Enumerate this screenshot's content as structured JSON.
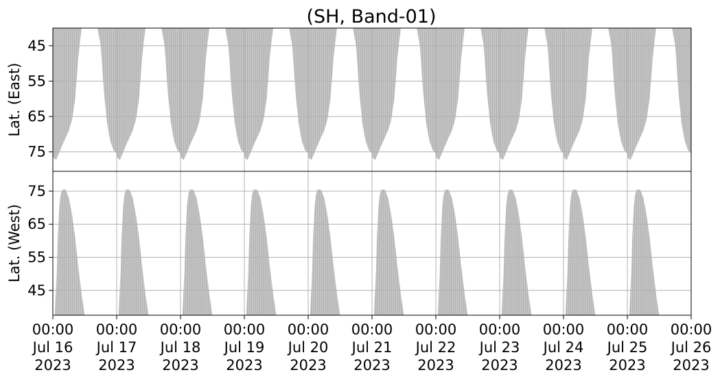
{
  "chart_data": {
    "type": "area",
    "title": "(SH, Band-01)",
    "colors": {
      "coverage": "#c4c4c4",
      "coverage_stripe": "#b2b2b2",
      "grid": "#b0b0b0",
      "axis": "#000000"
    },
    "grid": true,
    "x": {
      "type": "date",
      "range": [
        "2023-07-16 00:00",
        "2023-07-26 00:00"
      ],
      "ticks": [
        {
          "time": "00:00",
          "date": "Jul 16",
          "year": "2023"
        },
        {
          "time": "00:00",
          "date": "Jul 17",
          "year": "2023"
        },
        {
          "time": "00:00",
          "date": "Jul 18",
          "year": "2023"
        },
        {
          "time": "00:00",
          "date": "Jul 19",
          "year": "2023"
        },
        {
          "time": "00:00",
          "date": "Jul 20",
          "year": "2023"
        },
        {
          "time": "00:00",
          "date": "Jul 21",
          "year": "2023"
        },
        {
          "time": "00:00",
          "date": "Jul 22",
          "year": "2023"
        },
        {
          "time": "00:00",
          "date": "Jul 23",
          "year": "2023"
        },
        {
          "time": "00:00",
          "date": "Jul 24",
          "year": "2023"
        },
        {
          "time": "00:00",
          "date": "Jul 25",
          "year": "2023"
        },
        {
          "time": "00:00",
          "date": "Jul 26",
          "year": "2023"
        }
      ]
    },
    "panels": [
      {
        "id": "east",
        "ylabel": "Lat. (East)",
        "ylim": [
          40,
          80.5
        ],
        "inverted": true,
        "yticks": [
          45,
          55,
          65,
          75
        ],
        "coverage": "above_curve",
        "curve": {
          "x_day_offset": [
            0.0,
            0.05,
            0.1,
            0.15,
            0.2,
            0.25,
            0.3,
            0.35,
            0.4,
            0.45,
            0.5,
            0.52,
            0.55,
            0.6,
            0.65,
            0.7,
            0.75,
            0.8,
            0.85,
            0.9,
            0.95,
            1.0
          ],
          "lat": [
            76.5,
            77.3,
            75.2,
            73.0,
            71.0,
            69.0,
            66.0,
            60.0,
            48.0,
            40.0,
            40.0,
            40.0,
            40.0,
            40.0,
            40.0,
            40.0,
            45.0,
            58.0,
            67.0,
            72.0,
            74.5,
            75.5
          ]
        }
      },
      {
        "id": "west",
        "ylabel": "Lat. (West)",
        "ylim": [
          37.5,
          81
        ],
        "inverted": false,
        "yticks": [
          45,
          55,
          65,
          75
        ],
        "coverage": "below_curve",
        "curve": {
          "x_day_offset": [
            0.0,
            0.03,
            0.06,
            0.08,
            0.1,
            0.12,
            0.15,
            0.2,
            0.25,
            0.3,
            0.35,
            0.4,
            0.45,
            0.5,
            0.55,
            0.6,
            0.65,
            0.7,
            0.75,
            0.8,
            0.85,
            0.9,
            0.95,
            0.97,
            1.0
          ],
          "lat": [
            37.5,
            37.5,
            50.0,
            62.0,
            70.0,
            74.0,
            75.5,
            75.5,
            73.0,
            68.0,
            61.0,
            52.0,
            44.0,
            37.5,
            37.5,
            37.5,
            37.5,
            37.5,
            37.5,
            37.5,
            37.5,
            37.5,
            37.5,
            37.5,
            37.5
          ]
        }
      }
    ]
  }
}
